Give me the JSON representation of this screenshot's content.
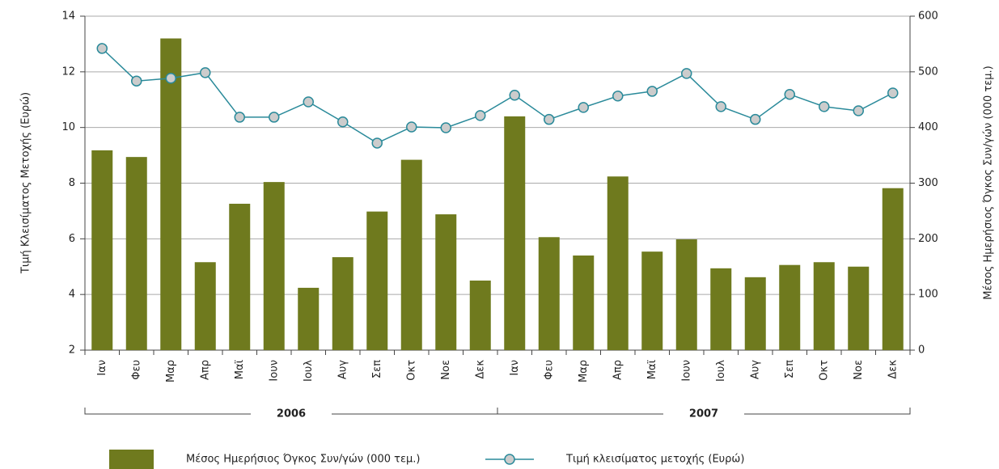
{
  "chart_data": {
    "type": "bar_line",
    "y_label": "Τιμή Κλεισίματος Μετοχής (Ευρώ)",
    "y2_label": "Μέσος Ημερήσιος Όγκος Συν/γών (000 τεμ.)",
    "categories": [
      "Ιαν",
      "Φευ",
      "Μαρ",
      "Απρ",
      "Μαϊ",
      "Ιουν",
      "Ιουλ",
      "Αυγ",
      "Σεπ",
      "Οκτ",
      "Νοε",
      "Δεκ",
      "Ιαν",
      "Φευ",
      "Μαρ",
      "Απρ",
      "Μαϊ",
      "Ιουν",
      "Ιουλ",
      "Αυγ",
      "Σεπ",
      "Οκτ",
      "Νοε",
      "Δεκ"
    ],
    "groups": [
      "2006",
      "2007"
    ],
    "series": [
      {
        "name": "Μέσος Ημερήσιος Όγκος Συν/γών (000 τεμ.)",
        "type": "bar",
        "axis": "y2",
        "color": "#6f7a1e",
        "values": [
          359,
          347,
          560,
          158,
          263,
          302,
          112,
          167,
          249,
          342,
          244,
          125,
          420,
          203,
          170,
          312,
          177,
          199,
          147,
          131,
          153,
          158,
          150,
          291
        ]
      },
      {
        "name": "Τιμή κλεισίματος μετοχής (Ευρώ)",
        "type": "line",
        "axis": "y",
        "color": "#2a8a9a",
        "values": [
          12.84,
          11.67,
          11.77,
          11.97,
          10.37,
          10.37,
          10.92,
          10.2,
          9.44,
          10.02,
          9.99,
          10.43,
          11.16,
          10.29,
          10.72,
          11.13,
          11.3,
          11.94,
          10.75,
          10.29,
          11.19,
          10.75,
          10.6,
          11.24
        ]
      }
    ],
    "ylim": [
      2,
      14
    ],
    "yticks": [
      2,
      4,
      6,
      8,
      10,
      12,
      14
    ],
    "y2lim": [
      0,
      600
    ],
    "y2ticks": [
      0,
      100,
      200,
      300,
      400,
      500,
      600
    ],
    "grid": true
  }
}
